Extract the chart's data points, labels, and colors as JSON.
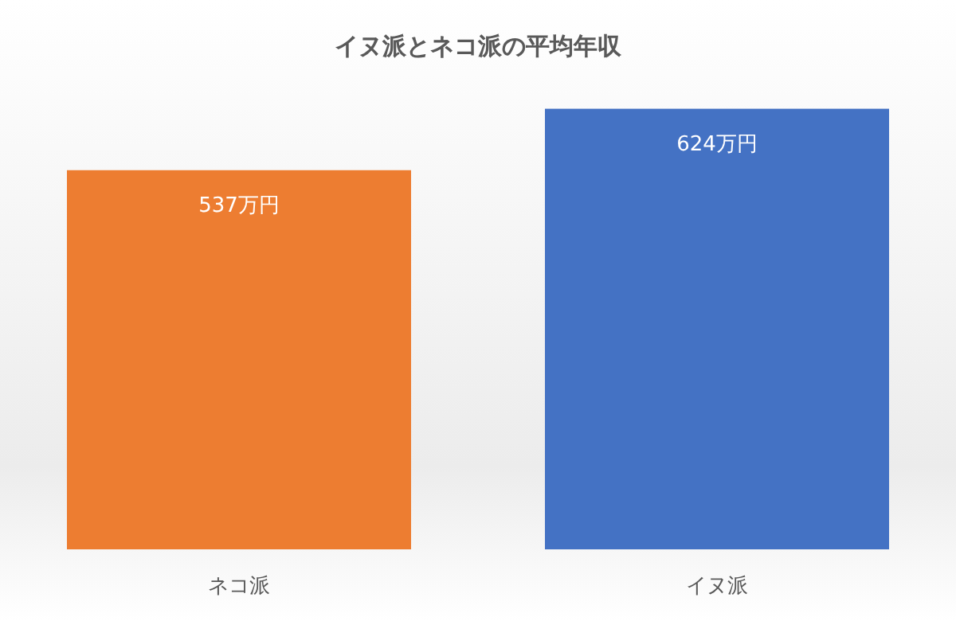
{
  "chart_data": {
    "type": "bar",
    "title": "イヌ派とネコ派の平均年収",
    "categories": [
      "ネコ派",
      "イヌ派"
    ],
    "values": [
      537,
      624
    ],
    "colors": [
      "#ed7d31",
      "#4472c4"
    ],
    "value_labels": [
      "537万円",
      "624万円"
    ],
    "grid": false
  }
}
